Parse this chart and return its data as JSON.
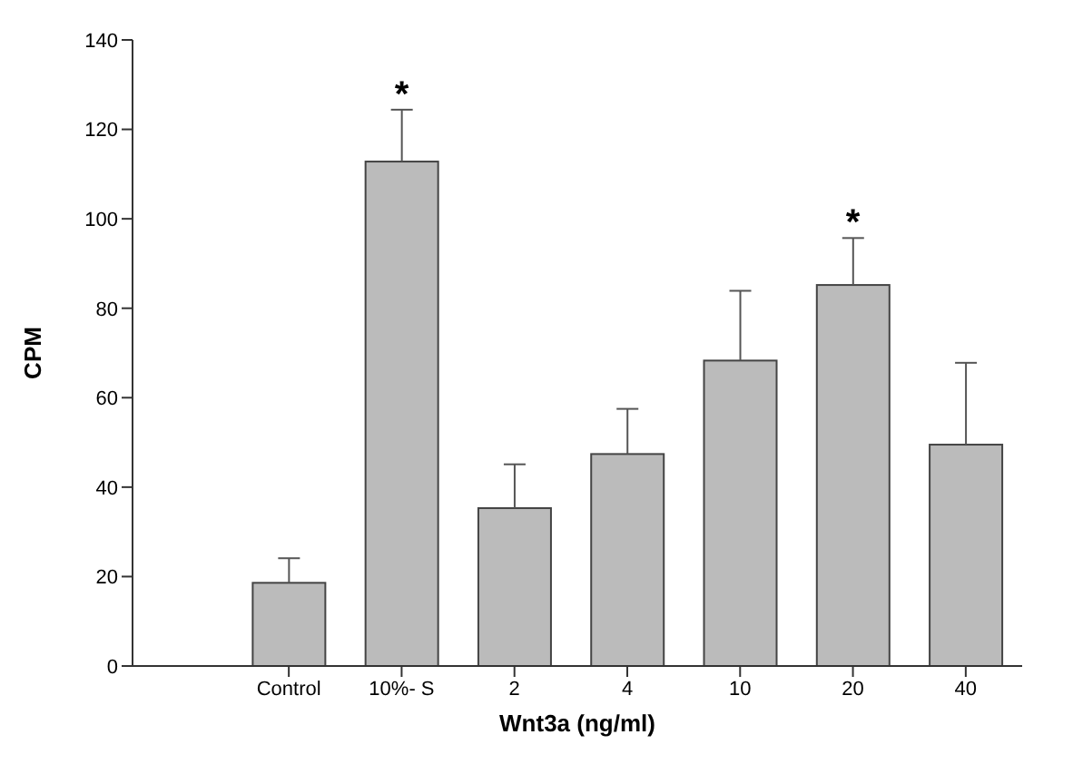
{
  "chart_data": {
    "type": "bar",
    "xlabel": "Wnt3a (ng/ml)",
    "ylabel": "CPM",
    "categories": [
      "Control",
      "10%- S",
      "2",
      "4",
      "10",
      "20",
      "40"
    ],
    "values": [
      18.6,
      112.8,
      35.3,
      47.4,
      68.3,
      85.2,
      49.5
    ],
    "errors": [
      [
        18.6,
        24.1
      ],
      [
        112.8,
        124.4
      ],
      [
        35.3,
        45.1
      ],
      [
        47.4,
        57.5
      ],
      [
        68.3,
        83.9
      ],
      [
        85.2,
        95.7
      ],
      [
        49.5,
        67.8
      ]
    ],
    "color": "#bbbbbb",
    "ylim": [
      0,
      140
    ],
    "yticks": [
      0,
      20,
      40,
      60,
      80,
      100,
      120,
      140
    ],
    "grid": false,
    "annotations": [
      {
        "text": "*",
        "x": "10%- S",
        "y": 124.4
      },
      {
        "text": "*",
        "x": "20",
        "y": 95.7
      }
    ]
  }
}
